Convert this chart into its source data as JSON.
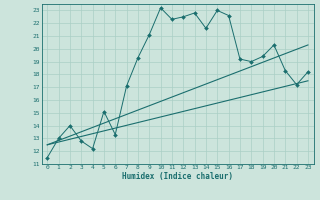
{
  "xlabel": "Humidex (Indice chaleur)",
  "xlim": [
    -0.5,
    23.5
  ],
  "ylim": [
    11,
    23.5
  ],
  "xticks": [
    0,
    1,
    2,
    3,
    4,
    5,
    6,
    7,
    8,
    9,
    10,
    11,
    12,
    13,
    14,
    15,
    16,
    17,
    18,
    19,
    20,
    21,
    22,
    23
  ],
  "yticks": [
    11,
    12,
    13,
    14,
    15,
    16,
    17,
    18,
    19,
    20,
    21,
    22,
    23
  ],
  "background_color": "#cce4dc",
  "grid_color": "#aacfc6",
  "line_color": "#1a6e6e",
  "line1_x": [
    0,
    1,
    2,
    3,
    4,
    5,
    6,
    7,
    8,
    9,
    10,
    11,
    12,
    13,
    14,
    15,
    16,
    17,
    18,
    19,
    20,
    21,
    22,
    23
  ],
  "line1_y": [
    11.5,
    13.0,
    14.0,
    12.8,
    12.2,
    15.1,
    13.3,
    17.1,
    19.3,
    21.1,
    23.2,
    22.3,
    22.5,
    22.8,
    21.6,
    23.0,
    22.6,
    19.2,
    19.0,
    19.4,
    20.3,
    18.3,
    17.2,
    18.2
  ],
  "line2_x": [
    0,
    23
  ],
  "line2_y": [
    12.5,
    20.3
  ],
  "line3_x": [
    0,
    23
  ],
  "line3_y": [
    12.5,
    17.5
  ],
  "markersize": 2.0
}
